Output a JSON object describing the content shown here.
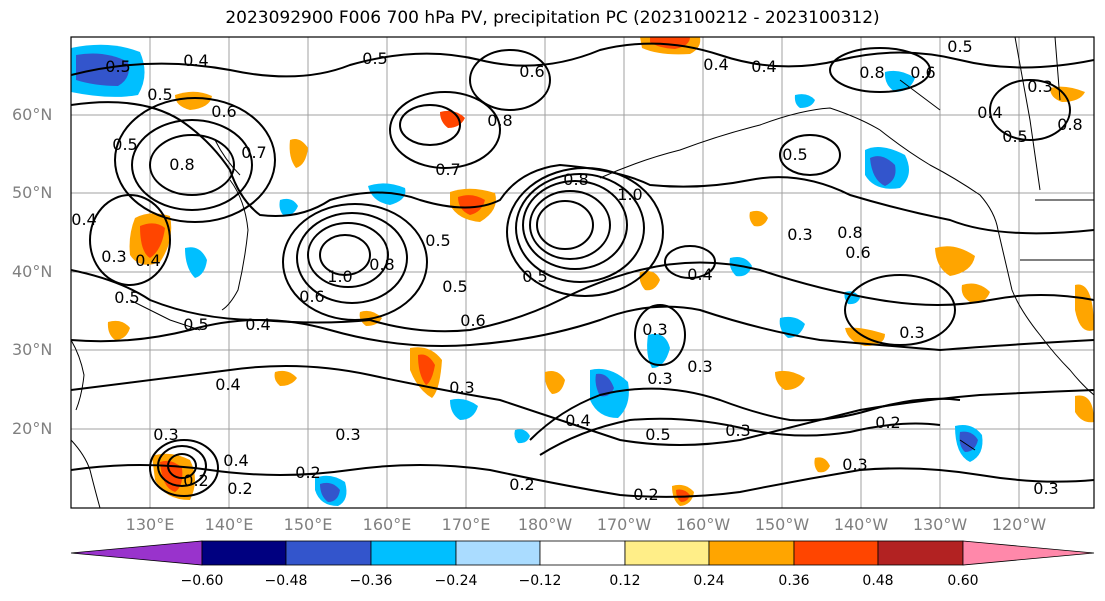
{
  "title": "2023092900 F006 700 hPa PV, precipitation PC (2023100212 - 2023100312)",
  "lat_labels": [
    "60°N",
    "50°N",
    "40°N",
    "30°N",
    "20°N"
  ],
  "lon_labels": [
    "130°E",
    "140°E",
    "150°E",
    "160°E",
    "170°E",
    "180°W",
    "170°W",
    "160°W",
    "150°W",
    "140°W",
    "130°W",
    "120°W"
  ],
  "colorbar": {
    "colors": [
      "#9933cc",
      "#000080",
      "#3355cc",
      "#00bfff",
      "#aadcff",
      "#ffffff",
      "#ffee88",
      "#ffa500",
      "#ff4500",
      "#b22222",
      "#ff88aa"
    ],
    "tick_labels": [
      "−0.60",
      "−0.48",
      "−0.36",
      "−0.24",
      "−0.12",
      "0.12",
      "0.24",
      "0.36",
      "0.48",
      "0.60"
    ]
  },
  "contour_labels": [
    {
      "text": "0.5"
    },
    {
      "text": "0.4"
    },
    {
      "text": "0.5"
    },
    {
      "text": "0.6"
    },
    {
      "text": "0.5"
    },
    {
      "text": "0.8"
    },
    {
      "text": "0.7"
    },
    {
      "text": "0.8"
    },
    {
      "text": "0.5"
    },
    {
      "text": "0.7"
    },
    {
      "text": "0.6"
    },
    {
      "text": "0.4"
    },
    {
      "text": "0.8"
    },
    {
      "text": "0.6"
    },
    {
      "text": "0.5"
    },
    {
      "text": "0.8"
    },
    {
      "text": "0.4"
    },
    {
      "text": "0.3"
    },
    {
      "text": "0.4"
    },
    {
      "text": "0.5"
    },
    {
      "text": "0.5"
    },
    {
      "text": "1.0"
    },
    {
      "text": "0.8"
    },
    {
      "text": "0.6"
    },
    {
      "text": "0.5"
    },
    {
      "text": "0.6"
    },
    {
      "text": "0.4"
    },
    {
      "text": "0.5"
    },
    {
      "text": "0.8"
    },
    {
      "text": "1.0"
    },
    {
      "text": "0.4"
    },
    {
      "text": "0.5"
    },
    {
      "text": "0.4"
    },
    {
      "text": "0.3"
    },
    {
      "text": "0.6"
    },
    {
      "text": "0.8"
    },
    {
      "text": "0.3"
    },
    {
      "text": "0.3"
    },
    {
      "text": "0.3"
    },
    {
      "text": "0.3"
    },
    {
      "text": "0.4"
    },
    {
      "text": "0.3"
    },
    {
      "text": "0.2"
    },
    {
      "text": "0.3"
    },
    {
      "text": "0.3"
    },
    {
      "text": "0.2"
    },
    {
      "text": "0.4"
    },
    {
      "text": "0.5"
    },
    {
      "text": "0.3"
    },
    {
      "text": "0.2"
    },
    {
      "text": "0.2"
    },
    {
      "text": "0.3"
    },
    {
      "text": "0.2"
    },
    {
      "text": "0.4"
    },
    {
      "text": "0.5"
    },
    {
      "text": "0.3"
    },
    {
      "text": "0.2"
    },
    {
      "text": "0.5"
    },
    {
      "text": "0.4"
    },
    {
      "text": "0.3"
    }
  ]
}
